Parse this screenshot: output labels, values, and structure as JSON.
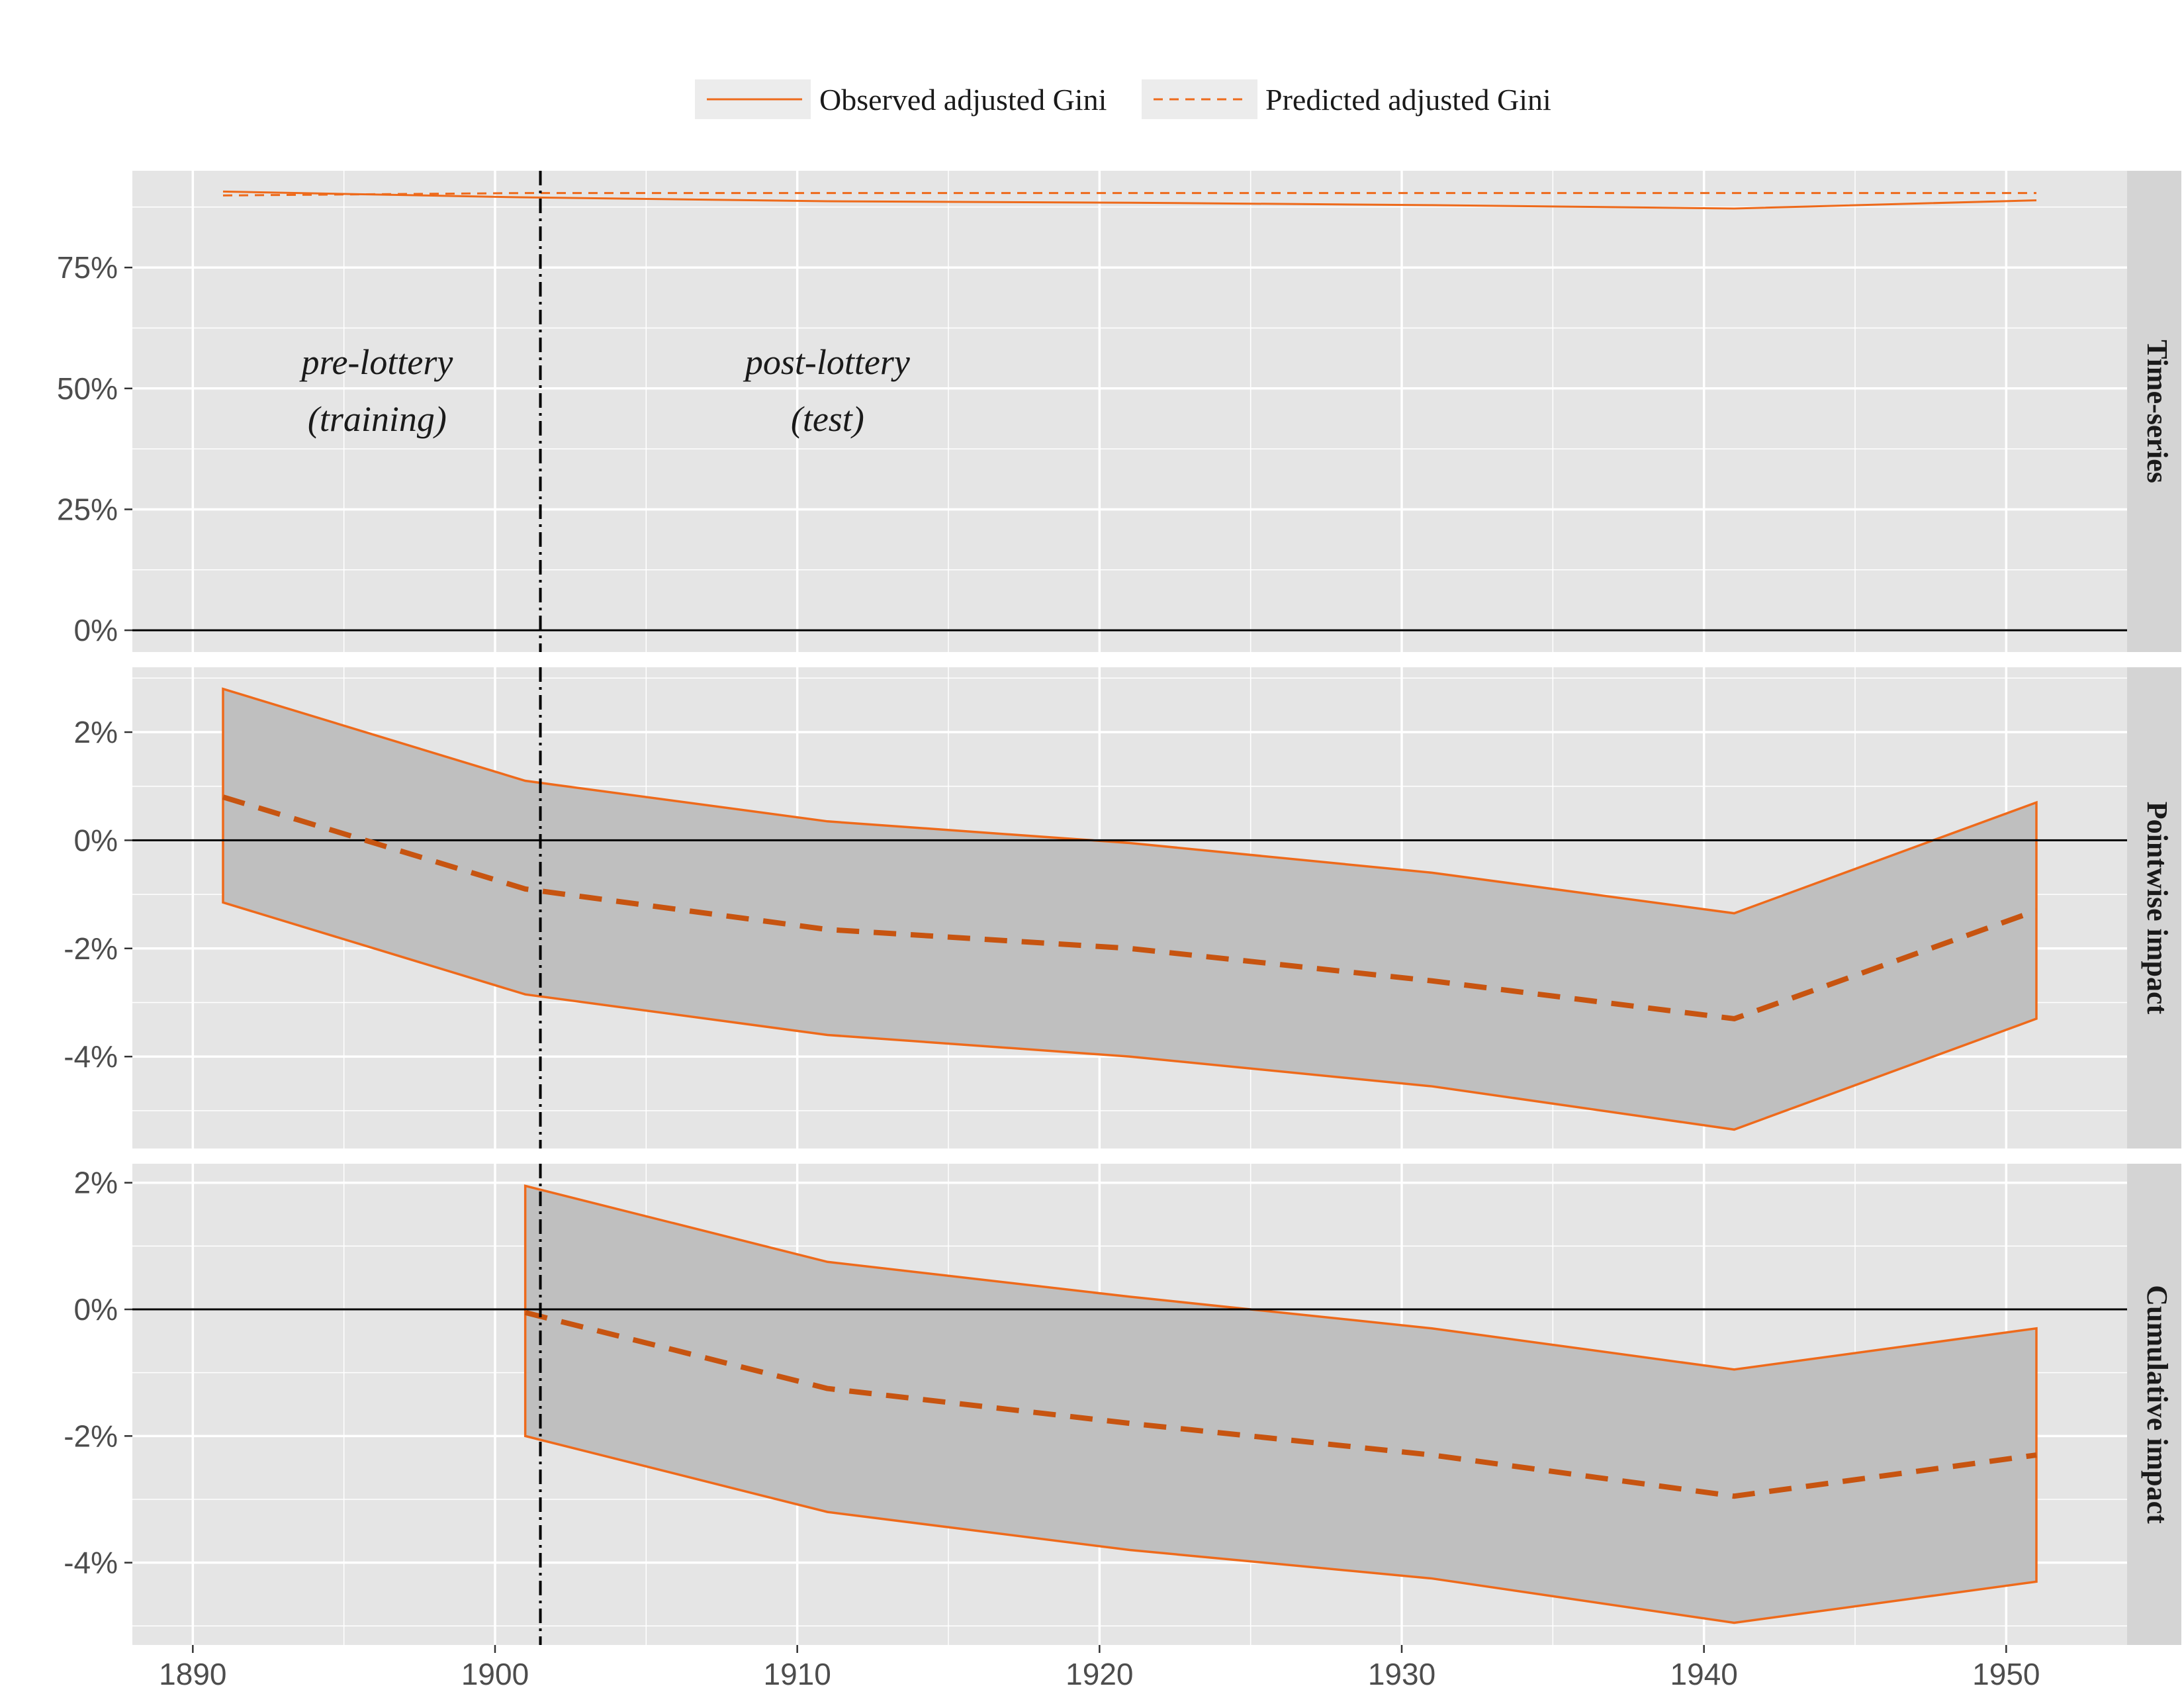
{
  "chart_data": {
    "type": "line",
    "x_ticks": [
      1890,
      1900,
      1910,
      1920,
      1930,
      1940,
      1950
    ],
    "x_range": [
      1888,
      1954
    ],
    "intervention_year": 1901.5,
    "legend": {
      "position": "top",
      "items": [
        {
          "label": "Observed adjusted Gini",
          "style": "solid"
        },
        {
          "label": "Predicted adjusted Gini",
          "style": "dashed"
        }
      ]
    },
    "annotations": [
      {
        "lines": [
          "pre-lottery",
          "(training)"
        ],
        "x": 1896.1
      },
      {
        "lines": [
          "post-lottery",
          "(test)"
        ],
        "x": 1911.0
      }
    ],
    "colors": {
      "line": "#ee6a1b",
      "line_dark": "#c75410",
      "ribbon": "#bfbfbf",
      "panel_bg": "#e5e5e5",
      "grid": "#ffffff",
      "strip_bg": "#d4d4d4"
    },
    "panels": [
      {
        "strip": "Time-series",
        "ylim": [
          -4.5,
          95
        ],
        "yticks": [
          0,
          25,
          50,
          75
        ],
        "ytick_labels": [
          "0%",
          "25%",
          "50%",
          "75%"
        ],
        "zero_line": true,
        "series": [
          {
            "name": "Observed adjusted Gini",
            "style": "solid",
            "x": [
              1891,
              1901,
              1911,
              1921,
              1931,
              1941,
              1951
            ],
            "y": [
              90.7,
              89.5,
              88.7,
              88.4,
              87.9,
              87.2,
              88.9
            ]
          },
          {
            "name": "Predicted adjusted Gini",
            "style": "dashed",
            "x": [
              1891,
              1901,
              1911,
              1921,
              1931,
              1941,
              1951
            ],
            "y": [
              89.9,
              90.4,
              90.4,
              90.4,
              90.4,
              90.4,
              90.4
            ]
          }
        ]
      },
      {
        "strip": "Pointwise impact",
        "ylim": [
          -5.7,
          3.2
        ],
        "yticks": [
          -4,
          -2,
          0,
          2
        ],
        "ytick_labels": [
          "-4%",
          "-2%",
          "0%",
          "2%"
        ],
        "zero_line": true,
        "ribbon": {
          "x": [
            1891,
            1901,
            1911,
            1921,
            1931,
            1941,
            1951
          ],
          "upper": [
            2.8,
            1.1,
            0.35,
            -0.05,
            -0.6,
            -1.35,
            0.7
          ],
          "lower": [
            -1.15,
            -2.85,
            -3.6,
            -4.0,
            -4.55,
            -5.35,
            -3.3
          ]
        },
        "series": [
          {
            "name": "Pointwise impact",
            "style": "dashed-thick",
            "x": [
              1891,
              1901,
              1911,
              1921,
              1931,
              1941,
              1951
            ],
            "y": [
              0.8,
              -0.9,
              -1.65,
              -2.0,
              -2.6,
              -3.3,
              -1.3
            ]
          }
        ]
      },
      {
        "strip": "Cumulative impact",
        "ylim": [
          -5.3,
          2.3
        ],
        "yticks": [
          -4,
          -2,
          0,
          2
        ],
        "ytick_labels": [
          "-4%",
          "-2%",
          "0%",
          "2%"
        ],
        "zero_line": true,
        "ribbon": {
          "x": [
            1901,
            1911,
            1921,
            1931,
            1941,
            1951
          ],
          "upper": [
            1.95,
            0.75,
            0.2,
            -0.3,
            -0.95,
            -0.3
          ],
          "lower": [
            -2.0,
            -3.2,
            -3.8,
            -4.25,
            -4.95,
            -4.3
          ]
        },
        "series": [
          {
            "name": "Cumulative impact",
            "style": "dashed-thick",
            "x": [
              1901,
              1911,
              1921,
              1931,
              1941,
              1951
            ],
            "y": [
              -0.05,
              -1.25,
              -1.8,
              -2.3,
              -2.95,
              -2.3
            ]
          }
        ]
      }
    ]
  }
}
